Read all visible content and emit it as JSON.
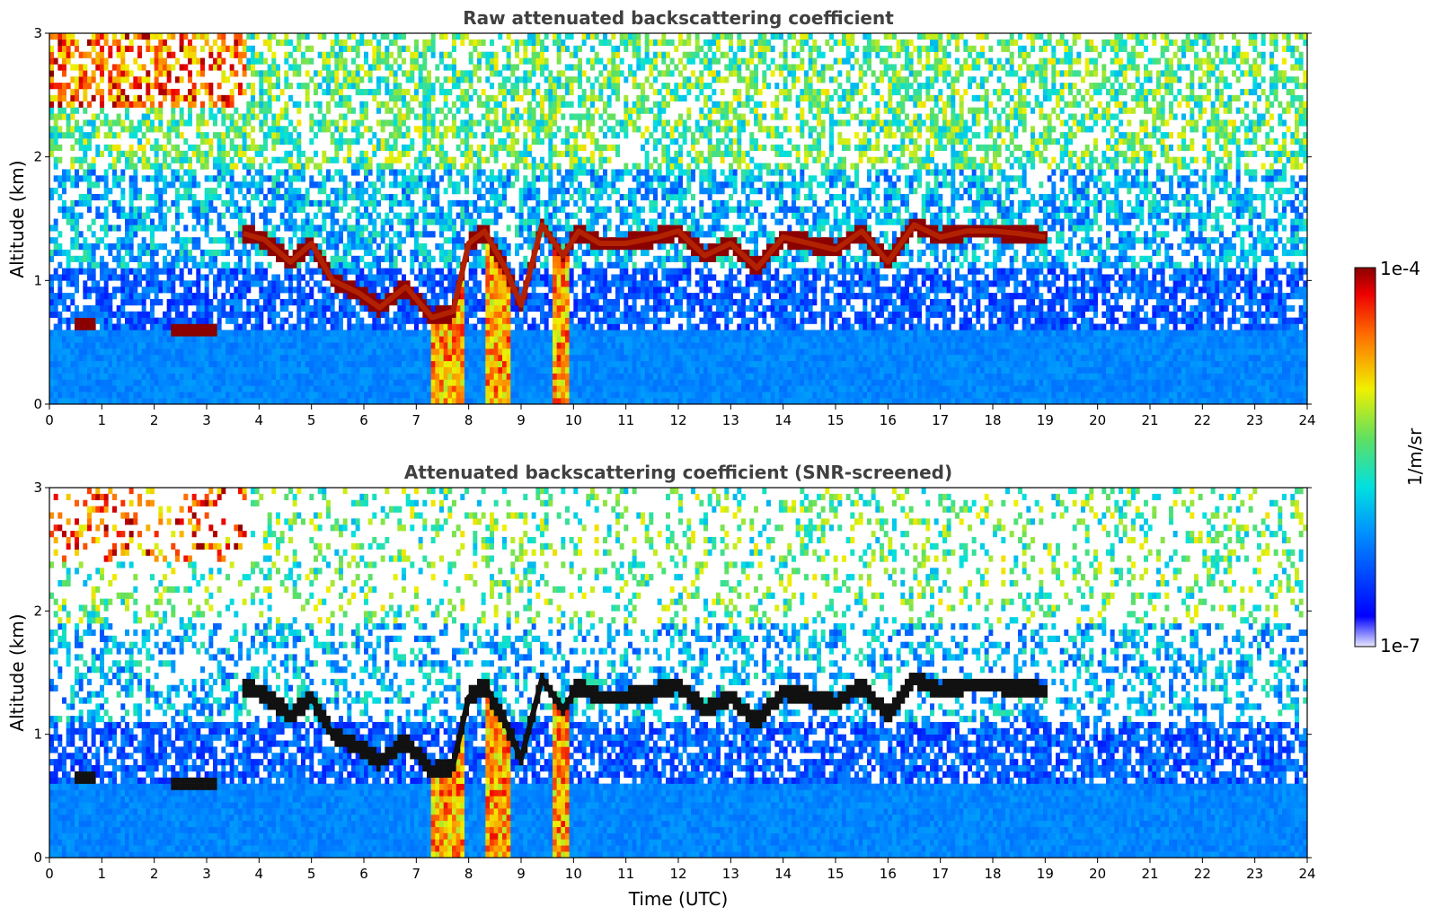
{
  "chart_data": [
    {
      "type": "heatmap",
      "title": "Raw attenuated backscattering coefficient",
      "xlabel": "",
      "ylabel": "Altitude (km)",
      "xlim": [
        0,
        24
      ],
      "ylim": [
        0,
        3
      ],
      "x_ticks": [
        "0",
        "1",
        "2",
        "3",
        "4",
        "5",
        "6",
        "7",
        "8",
        "9",
        "10",
        "11",
        "12",
        "13",
        "14",
        "15",
        "16",
        "17",
        "18",
        "19",
        "20",
        "21",
        "22",
        "23",
        "24"
      ],
      "y_ticks": [
        "0",
        "1",
        "2",
        "3"
      ],
      "screened": false,
      "cloud_layer": [
        [
          3.7,
          1.38
        ],
        [
          4.1,
          1.33
        ],
        [
          4.6,
          1.15
        ],
        [
          5.0,
          1.3
        ],
        [
          5.4,
          1.0
        ],
        [
          5.9,
          0.9
        ],
        [
          6.3,
          0.78
        ],
        [
          6.8,
          0.95
        ],
        [
          7.3,
          0.7
        ],
        [
          7.7,
          0.75
        ],
        [
          8.0,
          1.3
        ],
        [
          8.3,
          1.4
        ],
        [
          8.7,
          1.1
        ],
        [
          9.0,
          0.8
        ],
        [
          9.4,
          1.45
        ],
        [
          9.8,
          1.2
        ],
        [
          10.1,
          1.4
        ],
        [
          10.5,
          1.3
        ],
        [
          11.0,
          1.3
        ],
        [
          11.6,
          1.35
        ],
        [
          12.0,
          1.4
        ],
        [
          12.5,
          1.2
        ],
        [
          13.0,
          1.3
        ],
        [
          13.5,
          1.1
        ],
        [
          14.0,
          1.35
        ],
        [
          14.5,
          1.3
        ],
        [
          15.0,
          1.25
        ],
        [
          15.5,
          1.4
        ],
        [
          16.0,
          1.15
        ],
        [
          16.5,
          1.45
        ],
        [
          17.0,
          1.35
        ],
        [
          17.5,
          1.4
        ],
        [
          18.0,
          1.4
        ],
        [
          18.5,
          1.38
        ],
        [
          19.0,
          1.35
        ]
      ],
      "low_layers": [
        [
          0.5,
          0.9,
          0.66
        ],
        [
          2.3,
          3.2,
          0.6
        ]
      ],
      "column_plumes": [
        [
          7.3,
          7.9
        ],
        [
          8.35,
          8.8
        ],
        [
          9.6,
          9.9
        ]
      ],
      "colorbar": {
        "min": "1e-7",
        "max": "1e-4",
        "label": "1/m/sr",
        "colormap": "jet"
      }
    },
    {
      "type": "heatmap",
      "title": "Attenuated backscattering coefficient (SNR-screened)",
      "xlabel": "Time (UTC)",
      "ylabel": "Altitude (km)",
      "xlim": [
        0,
        24
      ],
      "ylim": [
        0,
        3
      ],
      "x_ticks": [
        "0",
        "1",
        "2",
        "3",
        "4",
        "5",
        "6",
        "7",
        "8",
        "9",
        "10",
        "11",
        "12",
        "13",
        "14",
        "15",
        "16",
        "17",
        "18",
        "19",
        "20",
        "21",
        "22",
        "23",
        "24"
      ],
      "y_ticks": [
        "0",
        "1",
        "2",
        "3"
      ],
      "screened": true
    }
  ],
  "colorbar": {
    "min_label": "1e-7",
    "max_label": "1e-4",
    "unit_label": "1/m/sr"
  },
  "colors": {
    "background": "#ffffff",
    "cloud": "#b22200",
    "cloud_screened": "#111111",
    "surface": "#1a7fff"
  }
}
